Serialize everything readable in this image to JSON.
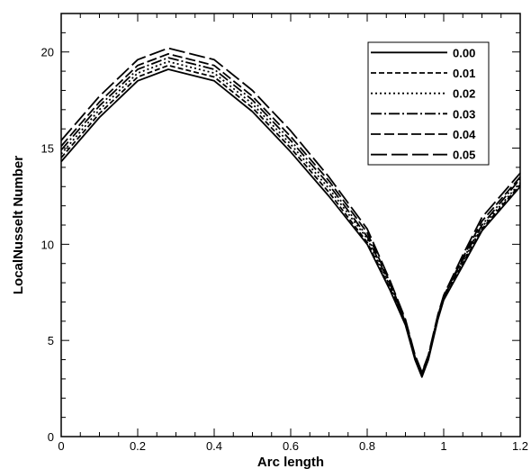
{
  "chart_data": {
    "type": "line",
    "title": "",
    "xlabel": "Arc length",
    "ylabel": "LocalNusselt Number",
    "xlim": [
      0,
      1.2
    ],
    "ylim": [
      0,
      22
    ],
    "x_ticks": [
      0,
      0.2,
      0.4,
      0.6,
      0.8,
      1,
      1.2
    ],
    "x_tick_labels": [
      "0",
      "0.2",
      "0.4",
      "0.6",
      "0.8",
      "1",
      "1.2"
    ],
    "y_ticks": [
      0,
      5,
      10,
      15,
      20
    ],
    "y_tick_labels": [
      "0",
      "5",
      "10",
      "15",
      "20"
    ],
    "grid": false,
    "legend_position": "top-right",
    "line_color": "#000000",
    "series": [
      {
        "name": "0.00",
        "dash": "solid",
        "x": [
          0,
          0.1,
          0.2,
          0.28,
          0.4,
          0.5,
          0.6,
          0.7,
          0.8,
          0.86,
          0.9,
          0.925,
          0.943,
          0.96,
          0.985,
          1.0,
          1.05,
          1.1,
          1.2
        ],
        "y": [
          14.3,
          16.6,
          18.5,
          19.1,
          18.5,
          16.9,
          14.8,
          12.5,
          10.0,
          7.6,
          5.8,
          4.0,
          3.1,
          4.0,
          6.1,
          7.1,
          8.9,
          10.7,
          13.0
        ]
      },
      {
        "name": "0.01",
        "dash": "dashed",
        "x": [
          0,
          0.1,
          0.2,
          0.28,
          0.4,
          0.5,
          0.6,
          0.7,
          0.8,
          0.86,
          0.9,
          0.925,
          0.943,
          0.96,
          0.985,
          1.0,
          1.05,
          1.1,
          1.2
        ],
        "y": [
          14.5,
          16.8,
          18.7,
          19.3,
          18.7,
          17.1,
          15.0,
          12.7,
          10.1,
          7.7,
          5.85,
          4.05,
          3.15,
          4.05,
          6.15,
          7.15,
          9.0,
          10.8,
          13.1
        ]
      },
      {
        "name": "0.02",
        "dash": "dotted",
        "x": [
          0,
          0.1,
          0.2,
          0.28,
          0.4,
          0.5,
          0.6,
          0.7,
          0.8,
          0.86,
          0.9,
          0.925,
          0.943,
          0.96,
          0.985,
          1.0,
          1.05,
          1.1,
          1.2
        ],
        "y": [
          14.7,
          17.0,
          18.9,
          19.5,
          18.9,
          17.3,
          15.2,
          12.9,
          10.3,
          7.8,
          5.9,
          4.1,
          3.2,
          4.1,
          6.2,
          7.2,
          9.1,
          10.9,
          13.2
        ]
      },
      {
        "name": "0.03",
        "dash": "dash-dot",
        "x": [
          0,
          0.1,
          0.2,
          0.28,
          0.4,
          0.5,
          0.6,
          0.7,
          0.8,
          0.86,
          0.9,
          0.925,
          0.943,
          0.96,
          0.985,
          1.0,
          1.05,
          1.1,
          1.2
        ],
        "y": [
          14.9,
          17.2,
          19.1,
          19.7,
          19.1,
          17.5,
          15.4,
          13.1,
          10.4,
          7.9,
          5.95,
          4.15,
          3.25,
          4.15,
          6.25,
          7.25,
          9.2,
          11.0,
          13.4
        ]
      },
      {
        "name": "0.04",
        "dash": "long-dash",
        "x": [
          0,
          0.1,
          0.2,
          0.28,
          0.4,
          0.5,
          0.6,
          0.7,
          0.8,
          0.86,
          0.9,
          0.925,
          0.943,
          0.96,
          0.985,
          1.0,
          1.05,
          1.1,
          1.2
        ],
        "y": [
          15.1,
          17.4,
          19.3,
          19.9,
          19.3,
          17.7,
          15.6,
          13.3,
          10.6,
          8.0,
          6.0,
          4.2,
          3.3,
          4.2,
          6.3,
          7.3,
          9.3,
          11.2,
          13.5
        ]
      },
      {
        "name": "0.05",
        "dash": "very-long-dash",
        "x": [
          0,
          0.1,
          0.2,
          0.28,
          0.4,
          0.5,
          0.6,
          0.7,
          0.8,
          0.86,
          0.9,
          0.925,
          0.943,
          0.96,
          0.985,
          1.0,
          1.05,
          1.1,
          1.2
        ],
        "y": [
          15.4,
          17.7,
          19.6,
          20.2,
          19.6,
          18.0,
          15.9,
          13.5,
          10.8,
          8.1,
          6.1,
          4.25,
          3.35,
          4.25,
          6.35,
          7.35,
          9.45,
          11.4,
          13.7
        ]
      }
    ]
  }
}
